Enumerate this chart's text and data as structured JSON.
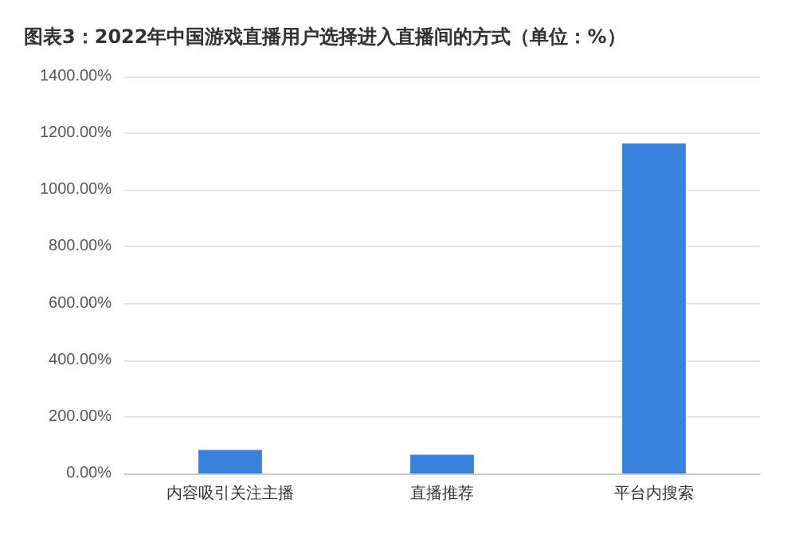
{
  "chart_data": {
    "type": "bar",
    "title": "图表3：2022年中国游戏直播用户选择进入直播间的方式（单位：%）",
    "categories": [
      "内容吸引关注主播",
      "直播推荐",
      "平台内搜索"
    ],
    "values": [
      83,
      66,
      1164
    ],
    "color": "#3a81de",
    "ylim": [
      0,
      1400
    ],
    "yticks": [
      {
        "value": 0,
        "label": "0.00%"
      },
      {
        "value": 200,
        "label": "200.00%"
      },
      {
        "value": 400,
        "label": "400.00%"
      },
      {
        "value": 600,
        "label": "600.00%"
      },
      {
        "value": 800,
        "label": "800.00%"
      },
      {
        "value": 1000,
        "label": "1000.00%"
      },
      {
        "value": 1200,
        "label": "1200.00%"
      },
      {
        "value": 1400,
        "label": "1400.00%"
      }
    ],
    "grid": "y"
  }
}
